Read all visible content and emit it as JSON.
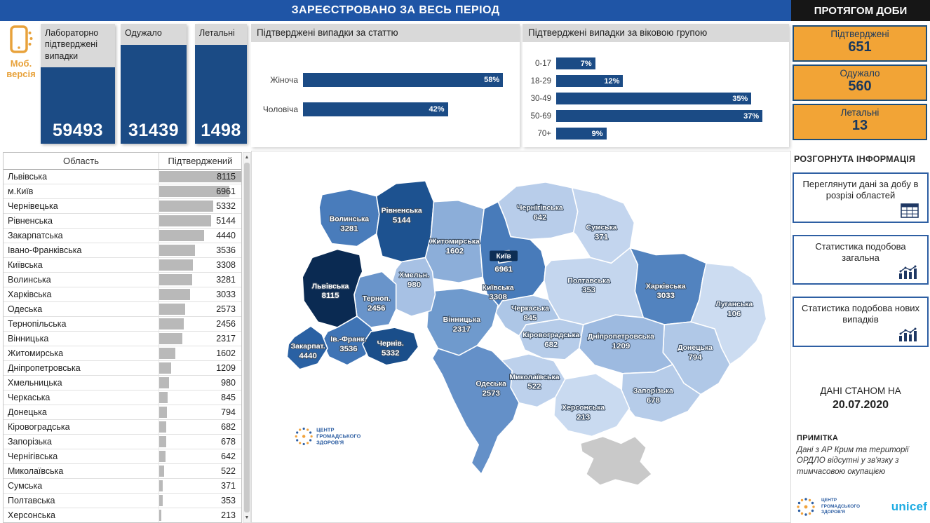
{
  "header": {
    "title": "ЗАРЕЄСТРОВАНО ЗА ВЕСЬ ПЕРІОД",
    "daily_title": "ПРОТЯГОМ ДОБИ"
  },
  "mobile": {
    "label": "Моб. версія"
  },
  "totals": [
    {
      "label": "Лабораторно підтверджені випадки",
      "value": "59493"
    },
    {
      "label": "Одужало",
      "value": "31439"
    },
    {
      "label": "Летальні",
      "value": "1498"
    }
  ],
  "daily": [
    {
      "label": "Підтверджені",
      "value": "651"
    },
    {
      "label": "Одужало",
      "value": "560"
    },
    {
      "label": "Летальні",
      "value": "13"
    }
  ],
  "gender_chart": {
    "title": "Підтверджені випадки за статтю"
  },
  "age_chart": {
    "title": "Підтверджені випадки за віковою групою"
  },
  "scrollbar": {
    "up": "▲",
    "down": "▼"
  },
  "sidebar": {
    "section_title": "РОЗГОРНУТА ІНФОРМАЦІЯ",
    "buttons": [
      {
        "label": "Переглянути дані за добу в розрізі областей",
        "icon": "table-calendar-icon"
      },
      {
        "label": "Статистика подобова загальна",
        "icon": "combo-chart-icon"
      },
      {
        "label": "Статистика подобова нових випадків",
        "icon": "combo-chart-icon"
      }
    ],
    "as_of_label": "ДАНІ СТАНОМ НА",
    "as_of_date": "20.07.2020",
    "note_title": "ПРИМІТКА",
    "note_text": "Дані з АР Крим та території ОРДЛО відсутні у зв'язку з тимчасовою окупацією",
    "logos": {
      "cphc": "ЦЕНТР ГРОМАДСЬКОГО ЗДОРОВ'Я",
      "unicef": "unicef"
    }
  },
  "table": {
    "columns": [
      "Область",
      "Підтверджений"
    ],
    "max_value": 8115,
    "rows": [
      [
        "Львівська",
        8115
      ],
      [
        "м.Київ",
        6961
      ],
      [
        "Чернівецька",
        5332
      ],
      [
        "Рівненська",
        5144
      ],
      [
        "Закарпатська",
        4440
      ],
      [
        "Івано-Франківська",
        3536
      ],
      [
        "Київська",
        3308
      ],
      [
        "Волинська",
        3281
      ],
      [
        "Харківська",
        3033
      ],
      [
        "Одеська",
        2573
      ],
      [
        "Тернопільська",
        2456
      ],
      [
        "Вінницька",
        2317
      ],
      [
        "Житомирська",
        1602
      ],
      [
        "Дніпропетровська",
        1209
      ],
      [
        "Хмельницька",
        980
      ],
      [
        "Черкаська",
        845
      ],
      [
        "Донецька",
        794
      ],
      [
        "Кіровоградська",
        682
      ],
      [
        "Запорізька",
        678
      ],
      [
        "Чернігівська",
        642
      ],
      [
        "Миколаївська",
        522
      ],
      [
        "Сумська",
        371
      ],
      [
        "Полтавська",
        353
      ],
      [
        "Херсонська",
        213
      ],
      [
        "Луганська",
        106
      ]
    ]
  },
  "map": {
    "watermark": {
      "lines": [
        "ЦЕНТР",
        "ГРОМАДСЬКОГО",
        "ЗДОРОВ'Я"
      ]
    },
    "regions": {
      "volynska": {
        "name": "Волинська",
        "value": "3281",
        "color": "#497CBB"
      },
      "rivnenska": {
        "name": "Рівненська",
        "value": "5144",
        "color": "#1D5290"
      },
      "zhytomyrska": {
        "name": "Житомирська",
        "value": "1602",
        "color": "#8CAED9"
      },
      "chernihivska": {
        "name": "Чернігівська",
        "value": "642",
        "color": "#B8CDEA"
      },
      "sumska": {
        "name": "Сумська",
        "value": "371",
        "color": "#C3D5EE"
      },
      "kyivska": {
        "name": "Київська",
        "value": "3308",
        "color": "#487BBA"
      },
      "kyiv": {
        "name": "Київ",
        "value": "6961",
        "color": "#113A6B"
      },
      "poltavska": {
        "name": "Полтавська",
        "value": "353",
        "color": "#C4D6EE"
      },
      "kharkivska": {
        "name": "Харківська",
        "value": "3033",
        "color": "#5283BF"
      },
      "luhanska": {
        "name": "Луганська",
        "value": "106",
        "color": "#CCDCF1"
      },
      "donetska": {
        "name": "Донецька",
        "value": "794",
        "color": "#B0C8E7"
      },
      "dnipropetrovska": {
        "name": "Дніпропетровська",
        "value": "1209",
        "color": "#9DBAE0"
      },
      "zaporizka": {
        "name": "Запорізька",
        "value": "678",
        "color": "#B6CCE9"
      },
      "khersonska": {
        "name": "Херсонська",
        "value": "213",
        "color": "#C9DAF0"
      },
      "mykolaivska": {
        "name": "Миколаївська",
        "value": "522",
        "color": "#BDD1EC"
      },
      "kirovohradska": {
        "name": "Кіровоградська",
        "value": "682",
        "color": "#B6CCE9"
      },
      "cherkaska": {
        "name": "Черкаська",
        "value": "845",
        "color": "#ADC6E6"
      },
      "vinnytska": {
        "name": "Вінницька",
        "value": "2317",
        "color": "#6F9ACD"
      },
      "khmelnytska": {
        "name": "Хмельн.",
        "value": "980",
        "color": "#A7C1E4"
      },
      "ternopilska": {
        "name": "Терноп.",
        "value": "2456",
        "color": "#6994CA"
      },
      "lvivska": {
        "name": "Львівська",
        "value": "8115",
        "color": "#0A2A52"
      },
      "ivano-frankivska": {
        "name": "Ів.-Франк.",
        "value": "3536",
        "color": "#3F74B5"
      },
      "zakarpatska": {
        "name": "Закарпат.",
        "value": "4440",
        "color": "#2A61A3"
      },
      "chernivetska": {
        "name": "Чернів.",
        "value": "5332",
        "color": "#1A4E8A"
      },
      "odeska": {
        "name": "Одеська",
        "value": "2573",
        "color": "#6490C8"
      },
      "crimea": {
        "name": "",
        "value": "",
        "color": "#C9C9C9"
      }
    }
  },
  "colors": {
    "header_blue": "#1F55A6",
    "accent_blue": "#1B4B85",
    "title_gray": "#D9D9D9",
    "orange": "#F2A436",
    "navy_text": "#17375E",
    "black_bar": "#161616",
    "unicef_blue": "#1CABE2",
    "map_low": "#CCDCF1",
    "map_high": "#0A2A52",
    "crimea_gray": "#C9C9C9"
  },
  "chart_data": [
    {
      "type": "bar",
      "orientation": "horizontal",
      "title": "Підтверджені випадки за статтю",
      "categories": [
        "Жіноча",
        "Чоловіча"
      ],
      "values": [
        58,
        42
      ],
      "unit": "%",
      "xlim": [
        0,
        60
      ],
      "grid": false,
      "legend": "none"
    },
    {
      "type": "bar",
      "orientation": "horizontal",
      "title": "Підтверджені випадки за віковою групою",
      "categories": [
        "0-17",
        "18-29",
        "30-49",
        "50-69",
        "70+"
      ],
      "values": [
        7,
        12,
        35,
        37,
        9
      ],
      "unit": "%",
      "xlim": [
        0,
        40
      ],
      "grid": false,
      "legend": "none"
    },
    {
      "type": "table",
      "columns": [
        "Область",
        "Підтверджений"
      ],
      "rows": [
        [
          "Львівська",
          8115
        ],
        [
          "м.Київ",
          6961
        ],
        [
          "Чернівецька",
          5332
        ],
        [
          "Рівненська",
          5144
        ],
        [
          "Закарпатська",
          4440
        ],
        [
          "Івано-Франківська",
          3536
        ],
        [
          "Київська",
          3308
        ],
        [
          "Волинська",
          3281
        ],
        [
          "Харківська",
          3033
        ],
        [
          "Одеська",
          2573
        ],
        [
          "Тернопільська",
          2456
        ],
        [
          "Вінницька",
          2317
        ],
        [
          "Житомирська",
          1602
        ],
        [
          "Дніпропетровська",
          1209
        ],
        [
          "Хмельницька",
          980
        ],
        [
          "Черкаська",
          845
        ],
        [
          "Донецька",
          794
        ],
        [
          "Кіровоградська",
          682
        ],
        [
          "Запорізька",
          678
        ],
        [
          "Чернігівська",
          642
        ],
        [
          "Миколаївська",
          522
        ],
        [
          "Сумська",
          371
        ],
        [
          "Полтавська",
          353
        ],
        [
          "Херсонська",
          213
        ],
        [
          "Луганська",
          106
        ]
      ]
    },
    {
      "type": "heatmap",
      "subtype": "choropleth_map",
      "regions": [
        {
          "name": "Львівська",
          "value": 8115
        },
        {
          "name": "Київ",
          "value": 6961
        },
        {
          "name": "Чернів.",
          "value": 5332
        },
        {
          "name": "Рівненська",
          "value": 5144
        },
        {
          "name": "Закарпат.",
          "value": 4440
        },
        {
          "name": "Ів.-Франк.",
          "value": 3536
        },
        {
          "name": "Київська",
          "value": 3308
        },
        {
          "name": "Волинська",
          "value": 3281
        },
        {
          "name": "Харківська",
          "value": 3033
        },
        {
          "name": "Одеська",
          "value": 2573
        },
        {
          "name": "Терноп.",
          "value": 2456
        },
        {
          "name": "Вінницька",
          "value": 2317
        },
        {
          "name": "Житомирська",
          "value": 1602
        },
        {
          "name": "Дніпропетровська",
          "value": 1209
        },
        {
          "name": "Хмельн.",
          "value": 980
        },
        {
          "name": "Черкаська",
          "value": 845
        },
        {
          "name": "Донецька",
          "value": 794
        },
        {
          "name": "Кіровоградська",
          "value": 682
        },
        {
          "name": "Запорізька",
          "value": 678
        },
        {
          "name": "Чернігівська",
          "value": 642
        },
        {
          "name": "Миколаївська",
          "value": 522
        },
        {
          "name": "Сумська",
          "value": 371
        },
        {
          "name": "Полтавська",
          "value": 353
        },
        {
          "name": "Херсонська",
          "value": 213
        },
        {
          "name": "Луганська",
          "value": 106
        }
      ]
    }
  ]
}
